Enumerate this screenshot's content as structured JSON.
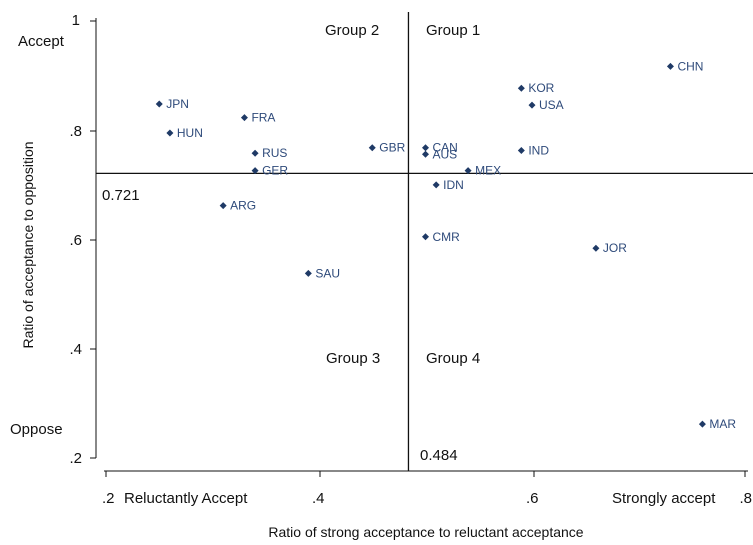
{
  "chart_data": {
    "type": "scatter",
    "xlabel": "Ratio of strong acceptance to reluctant acceptance",
    "ylabel": "Ratio of acceptance to opposition",
    "xlim": [
      0.2,
      0.8
    ],
    "ylim": [
      0.2,
      1.0
    ],
    "x_ticks": [
      ".2",
      ".4",
      ".6",
      ".8"
    ],
    "y_ticks": [
      ".2",
      ".4",
      ".6",
      ".8",
      "1"
    ],
    "x_corner_labels": {
      "low": "Reluctantly Accept",
      "high": "Strongly accept"
    },
    "y_corner_labels": {
      "low": "Oppose",
      "high": "Accept"
    },
    "reference_lines": {
      "x": 0.484,
      "y": 0.721
    },
    "reference_labels": {
      "x": "0.484",
      "y": "0.721"
    },
    "groups": [
      "Group 1",
      "Group 2",
      "Group 3",
      "Group 4"
    ],
    "grid": false,
    "points": [
      {
        "label": "CHN",
        "x": 0.73,
        "y": 0.917
      },
      {
        "label": "KOR",
        "x": 0.59,
        "y": 0.877
      },
      {
        "label": "USA",
        "x": 0.6,
        "y": 0.846
      },
      {
        "label": "JPN",
        "x": 0.25,
        "y": 0.848
      },
      {
        "label": "HUN",
        "x": 0.26,
        "y": 0.795
      },
      {
        "label": "FRA",
        "x": 0.33,
        "y": 0.823
      },
      {
        "label": "RUS",
        "x": 0.34,
        "y": 0.758
      },
      {
        "label": "GER",
        "x": 0.34,
        "y": 0.726
      },
      {
        "label": "GBR",
        "x": 0.45,
        "y": 0.768
      },
      {
        "label": "CAN",
        "x": 0.5,
        "y": 0.768
      },
      {
        "label": "AUS",
        "x": 0.5,
        "y": 0.756
      },
      {
        "label": "MEX",
        "x": 0.54,
        "y": 0.726
      },
      {
        "label": "IND",
        "x": 0.59,
        "y": 0.763
      },
      {
        "label": "IDN",
        "x": 0.51,
        "y": 0.7
      },
      {
        "label": "ARG",
        "x": 0.31,
        "y": 0.662
      },
      {
        "label": "CMR",
        "x": 0.5,
        "y": 0.605
      },
      {
        "label": "JOR",
        "x": 0.66,
        "y": 0.584
      },
      {
        "label": "SAU",
        "x": 0.39,
        "y": 0.538
      },
      {
        "label": "MAR",
        "x": 0.76,
        "y": 0.262
      }
    ],
    "marker_color": "#1f3a66",
    "label_color": "#2e4a7a"
  }
}
